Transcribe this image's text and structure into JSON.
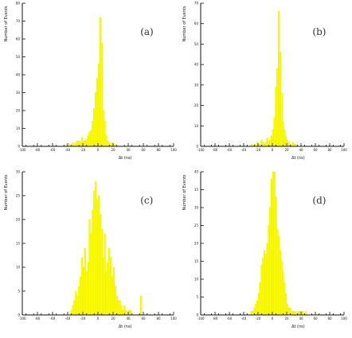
{
  "chart_data": [
    {
      "type": "bar",
      "panel_label": "(a)",
      "xlabel": "Δt (ns)",
      "ylabel": "Number of Events",
      "x_ticks": [
        "-100",
        "-80",
        "-60",
        "-40",
        "-20",
        "0",
        "20",
        "40",
        "60",
        "80",
        "100"
      ],
      "y_ticks": [
        "0",
        "10",
        "20",
        "30",
        "40",
        "50",
        "60",
        "70",
        "80"
      ],
      "bin_edges": [
        -42,
        -40,
        -38,
        -36,
        -34,
        -32,
        -30,
        -28,
        -26,
        -24,
        -22,
        -20,
        -18,
        -16,
        -14,
        -12,
        -10,
        -8,
        -6,
        -4,
        -2,
        0,
        2,
        4,
        6,
        8,
        10,
        12,
        14,
        16,
        18,
        20,
        22,
        24
      ],
      "values": [
        1,
        0,
        1,
        0,
        2,
        1,
        2,
        3,
        3,
        2,
        5,
        3,
        3,
        4,
        6,
        8,
        9,
        14,
        21,
        30,
        38,
        46,
        72,
        58,
        20,
        14,
        6,
        3,
        2,
        1,
        2,
        1,
        1
      ],
      "xlim": [
        -100,
        100
      ],
      "ylim": [
        0,
        80
      ],
      "grid": false
    },
    {
      "type": "bar",
      "panel_label": "(b)",
      "xlabel": "Δt (ns)",
      "ylabel": "Number of Events",
      "x_ticks": [
        "-100",
        "-80",
        "-60",
        "-40",
        "-20",
        "0",
        "20",
        "40",
        "60",
        "80",
        "100"
      ],
      "y_ticks": [
        "0",
        "10",
        "20",
        "30",
        "40",
        "50",
        "60",
        "70"
      ],
      "bin_edges": [
        -30,
        -28,
        -26,
        -24,
        -22,
        -20,
        -18,
        -16,
        -14,
        -12,
        -10,
        -8,
        -6,
        -4,
        -2,
        0,
        2,
        4,
        6,
        8,
        10,
        12,
        14,
        16,
        18,
        20,
        22,
        24,
        26,
        28,
        30,
        32,
        34,
        36
      ],
      "values": [
        1,
        0,
        1,
        1,
        2,
        1,
        1,
        3,
        2,
        1,
        2,
        4,
        2,
        3,
        5,
        8,
        14,
        29,
        38,
        66,
        46,
        26,
        12,
        8,
        5,
        3,
        2,
        1,
        1,
        2,
        1,
        1,
        0
      ],
      "xlim": [
        -100,
        100
      ],
      "ylim": [
        0,
        70
      ],
      "grid": false
    },
    {
      "type": "bar",
      "panel_label": "(c)",
      "xlabel": "Δt (ns)",
      "ylabel": "Number of Events",
      "x_ticks": [
        "-100",
        "-80",
        "-60",
        "-40",
        "-20",
        "0",
        "20",
        "40",
        "60",
        "80",
        "100"
      ],
      "y_ticks": [
        "0",
        "5",
        "10",
        "15",
        "20",
        "25",
        "30"
      ],
      "bin_edges": [
        -36,
        -34,
        -32,
        -30,
        -28,
        -26,
        -24,
        -22,
        -20,
        -18,
        -16,
        -14,
        -12,
        -10,
        -8,
        -6,
        -4,
        -2,
        0,
        2,
        4,
        6,
        8,
        10,
        12,
        14,
        16,
        18,
        20,
        22,
        24,
        26,
        28,
        30,
        32,
        34,
        36,
        38,
        40,
        42,
        44,
        46,
        48,
        50,
        52,
        54,
        56,
        58
      ],
      "values": [
        1,
        2,
        3,
        5,
        4,
        6,
        8,
        12,
        10,
        14,
        9,
        11,
        20,
        17,
        22,
        26,
        28,
        24,
        25,
        21,
        18,
        12,
        17,
        9,
        11,
        14,
        12,
        8,
        10,
        6,
        4,
        3,
        3,
        2,
        1,
        2,
        1,
        0,
        1,
        1,
        0,
        0,
        0,
        0,
        0,
        0,
        4
      ],
      "xlim": [
        -100,
        100
      ],
      "ylim": [
        0,
        30
      ],
      "grid": false
    },
    {
      "type": "bar",
      "panel_label": "(d)",
      "xlabel": "Δt (ns)",
      "ylabel": "Number of Events",
      "x_ticks": [
        "-100",
        "-80",
        "-60",
        "-40",
        "-20",
        "0",
        "20",
        "40",
        "60",
        "80",
        "100"
      ],
      "y_ticks": [
        "0",
        "5",
        "10",
        "15",
        "20",
        "25",
        "30",
        "35",
        "40"
      ],
      "bin_edges": [
        -30,
        -28,
        -26,
        -24,
        -22,
        -20,
        -18,
        -16,
        -14,
        -12,
        -10,
        -8,
        -6,
        -4,
        -2,
        0,
        2,
        4,
        6,
        8,
        10,
        12,
        14,
        16,
        18,
        20,
        22,
        24,
        26,
        28,
        30,
        32,
        34,
        36,
        38,
        40,
        42,
        44,
        46,
        48,
        50
      ],
      "values": [
        1,
        1,
        2,
        3,
        4,
        6,
        9,
        14,
        16,
        18,
        17,
        20,
        25,
        30,
        38,
        46,
        41,
        33,
        24,
        22,
        18,
        15,
        12,
        9,
        6,
        3,
        2,
        2,
        1,
        1,
        1,
        0,
        1,
        1,
        1,
        1,
        1,
        0,
        1,
        0
      ],
      "xlim": [
        -100,
        100
      ],
      "ylim": [
        0,
        40
      ],
      "grid": false
    }
  ]
}
